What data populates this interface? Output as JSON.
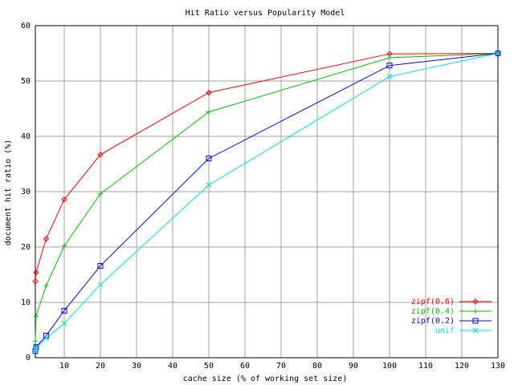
{
  "chart_data": {
    "type": "line",
    "title": "Hit Ratio versus Popularity Model",
    "x_label": "cache size (% of working set size)",
    "y_label": "document hit ratio (%)",
    "x": [
      2,
      2.2,
      5,
      10,
      20,
      50,
      100,
      130
    ],
    "xlim": [
      2,
      130
    ],
    "ylim": [
      0,
      60
    ],
    "xticks": [
      10,
      20,
      30,
      40,
      50,
      60,
      70,
      80,
      90,
      100,
      110,
      120,
      130
    ],
    "yticks": [
      0,
      10,
      20,
      30,
      40,
      50,
      60
    ],
    "grid": true,
    "legend": "lower right",
    "series": [
      {
        "name": "zipf(0.6)",
        "color": "#ff0000",
        "marker": "diamond",
        "values": [
          13.8,
          15.4,
          21.5,
          28.6,
          36.7,
          47.9,
          54.9,
          55.0
        ]
      },
      {
        "name": "zipf(0.4)",
        "color": "#00c000",
        "marker": "plus",
        "values": [
          3,
          7.5,
          13,
          20.2,
          29.6,
          44.4,
          54.2,
          55.0
        ]
      },
      {
        "name": "zipf(0.2)",
        "color": "#0000ff",
        "marker": "square",
        "values": [
          1.2,
          1.9,
          4,
          8.5,
          16.6,
          36,
          52.8,
          55.0
        ]
      },
      {
        "name": "unif",
        "color": "#00e0e0",
        "marker": "cross",
        "values": [
          1.3,
          1.8,
          3.5,
          6.2,
          13.2,
          31.2,
          50.8,
          55.0
        ]
      }
    ]
  }
}
